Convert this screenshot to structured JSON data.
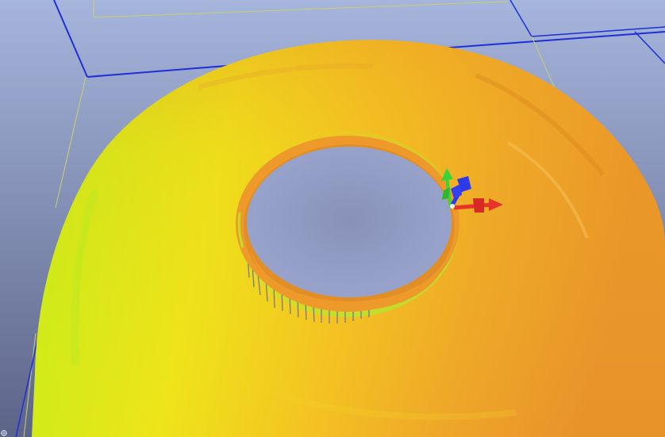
{
  "viewer": {
    "background_top": "#a6b5dc",
    "background_bottom": "#5c6488",
    "bounding_box_color": "#1f2fd4",
    "bounding_box_edge_color": "#c9cf70",
    "surface_colormap": [
      "#8ef01a",
      "#c8ee18",
      "#eee41a",
      "#f4c222",
      "#eea628",
      "#e8922a"
    ],
    "rim_color": "#ee9a2a",
    "shadow_streak_color": "#6f7392",
    "axis_triad": {
      "x_color": "#e8332a",
      "y_color": "#3ad43a",
      "z_color": "#2c3ae8"
    },
    "corner_marker_icon": "pan-cursor-icon"
  }
}
